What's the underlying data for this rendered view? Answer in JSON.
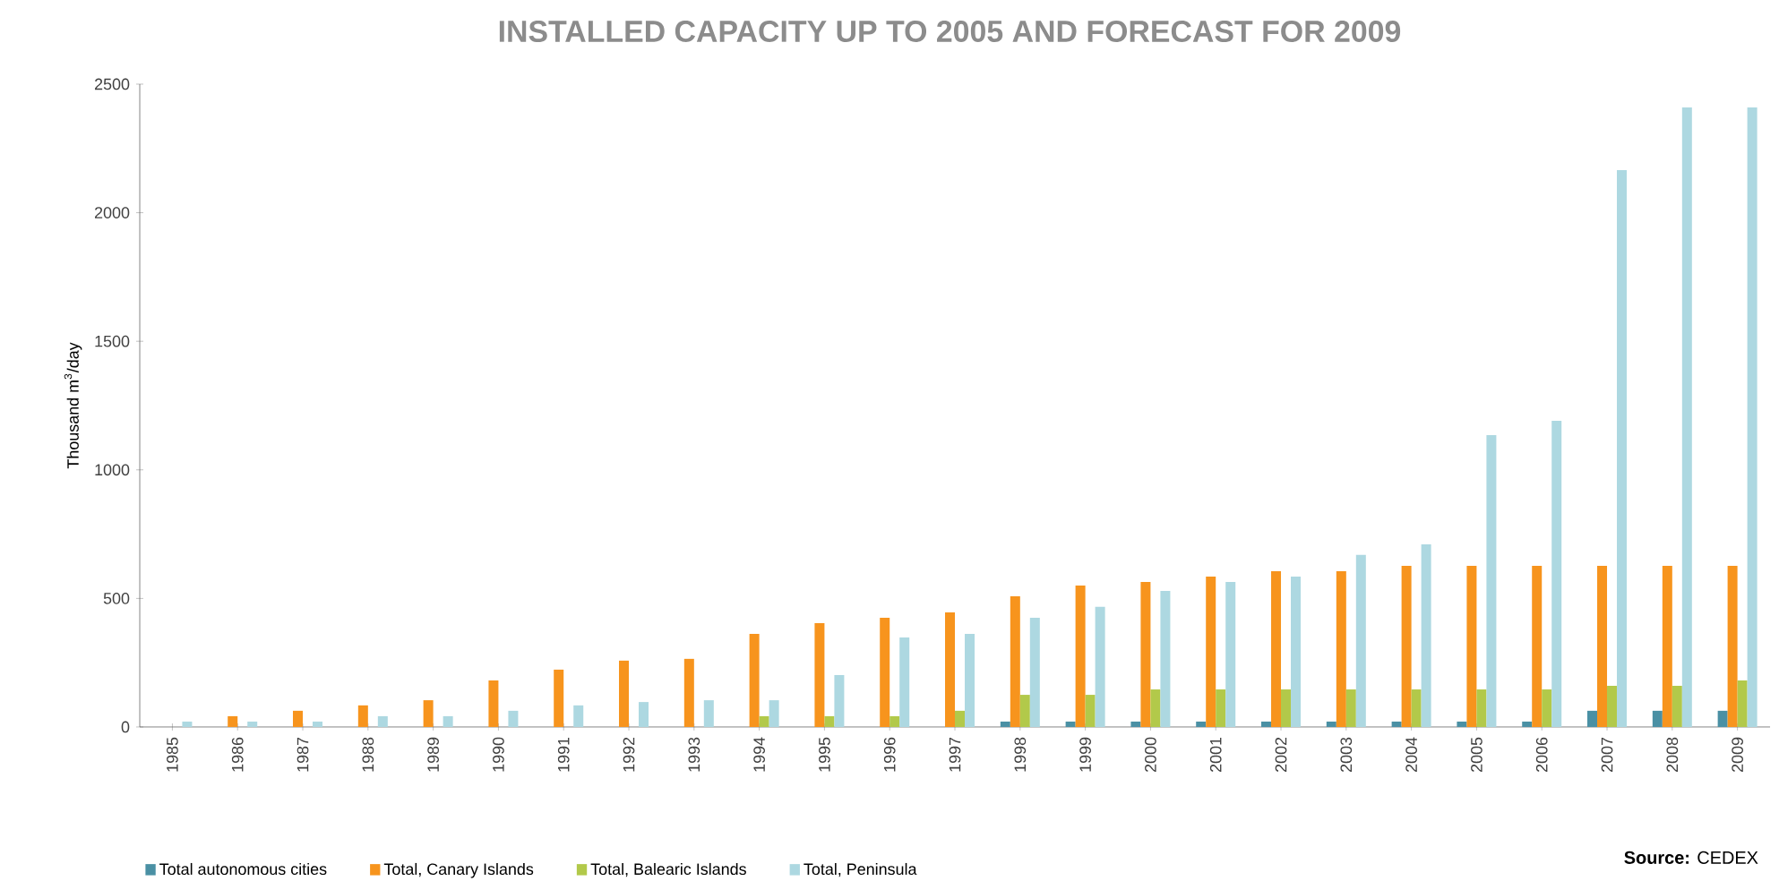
{
  "chart_data": {
    "type": "bar",
    "title": "INSTALLED CAPACITY UP TO 2005 AND FORECAST FOR 2009",
    "ylabel": "Thousand m$^{3}$/day",
    "categories": [
      "1985",
      "1986",
      "1987",
      "1988",
      "1989",
      "1990",
      "1991",
      "1992",
      "1993",
      "1994",
      "1995",
      "1996",
      "1997",
      "1998",
      "1999",
      "2000",
      "2001",
      "2002",
      "2003",
      "2004",
      "2005",
      "2006",
      "2007",
      "2008",
      "2009"
    ],
    "series": [
      {
        "name": "Total autonomous cities",
        "color": "#4a90a4",
        "values": [
          0,
          0,
          0,
          0,
          0,
          0,
          0,
          0,
          0,
          0,
          0,
          0,
          0,
          21,
          21,
          21,
          21,
          21,
          21,
          21,
          21,
          21,
          63,
          63,
          63
        ]
      },
      {
        "name": "Total, Canary Islands",
        "color": "#f7941d",
        "values": [
          0,
          42,
          63,
          84,
          104,
          181,
          223,
          258,
          265,
          362,
          404,
          425,
          446,
          508,
          550,
          564,
          585,
          606,
          606,
          627,
          627,
          627,
          627,
          627,
          627
        ]
      },
      {
        "name": "Total, Balearic Islands",
        "color": "#b2c94a",
        "values": [
          0,
          0,
          0,
          0,
          0,
          0,
          0,
          0,
          0,
          42,
          42,
          42,
          63,
          125,
          125,
          146,
          146,
          146,
          146,
          146,
          146,
          146,
          160,
          160,
          181
        ]
      },
      {
        "name": "Total, Peninsula",
        "color": "#add8e1",
        "values": [
          21,
          21,
          21,
          42,
          42,
          63,
          84,
          97,
          104,
          104,
          202,
          348,
          362,
          425,
          467,
          529,
          564,
          585,
          669,
          710,
          1135,
          1191,
          2166,
          2409,
          2409
        ]
      }
    ],
    "ylim": [
      0,
      2500
    ],
    "yticks": [
      0,
      500,
      1000,
      1500,
      2000,
      2500
    ],
    "legend": "bottom",
    "annotations": [
      "**Source:** CEDEX"
    ]
  }
}
